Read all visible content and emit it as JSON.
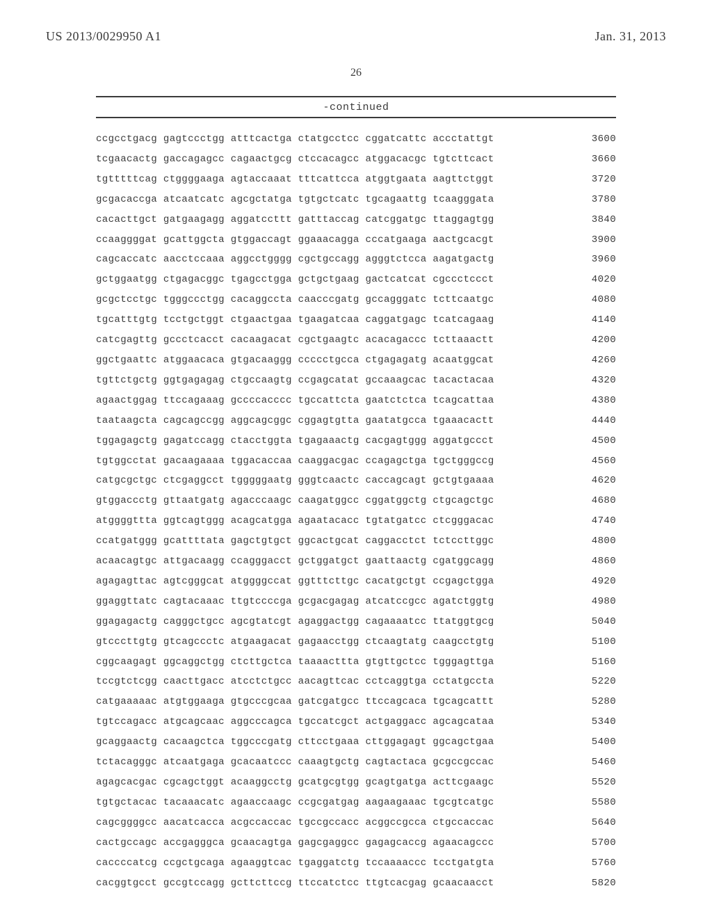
{
  "header": {
    "pub_number": "US 2013/0029950 A1",
    "pub_date": "Jan. 31, 2013"
  },
  "page_number": "26",
  "continued_label": "-continued",
  "sequence_rows": [
    {
      "groups": [
        "ccgcctgacg",
        "gagtccctgg",
        "atttcactga",
        "ctatgcctcc",
        "cggatcattc",
        "accctattgt"
      ],
      "num": "3600"
    },
    {
      "groups": [
        "tcgaacactg",
        "gaccagagcc",
        "cagaactgcg",
        "ctccacagcc",
        "atggacacgc",
        "tgtcttcact"
      ],
      "num": "3660"
    },
    {
      "groups": [
        "tgtttttcag",
        "ctggggaaga",
        "agtaccaaat",
        "tttcattcca",
        "atggtgaata",
        "aagttctggt"
      ],
      "num": "3720"
    },
    {
      "groups": [
        "gcgacaccga",
        "atcaatcatc",
        "agcgctatga",
        "tgtgctcatc",
        "tgcagaattg",
        "tcaagggata"
      ],
      "num": "3780"
    },
    {
      "groups": [
        "cacacttgct",
        "gatgaagagg",
        "aggatccttt",
        "gatttaccag",
        "catcggatgc",
        "ttaggagtgg"
      ],
      "num": "3840"
    },
    {
      "groups": [
        "ccaaggggat",
        "gcattggcta",
        "gtggaccagt",
        "ggaaacagga",
        "cccatgaaga",
        "aactgcacgt"
      ],
      "num": "3900"
    },
    {
      "groups": [
        "cagcaccatc",
        "aacctccaaa",
        "aggcctgggg",
        "cgctgccagg",
        "agggtctcca",
        "aagatgactg"
      ],
      "num": "3960"
    },
    {
      "groups": [
        "gctggaatgg",
        "ctgagacggc",
        "tgagcctgga",
        "gctgctgaag",
        "gactcatcat",
        "cgccctccct"
      ],
      "num": "4020"
    },
    {
      "groups": [
        "gcgctcctgc",
        "tgggccctgg",
        "cacaggccta",
        "caacccgatg",
        "gccagggatc",
        "tcttcaatgc"
      ],
      "num": "4080"
    },
    {
      "groups": [
        "tgcatttgtg",
        "tcctgctggt",
        "ctgaactgaa",
        "tgaagatcaa",
        "caggatgagc",
        "tcatcagaag"
      ],
      "num": "4140"
    },
    {
      "groups": [
        "catcgagttg",
        "gccctcacct",
        "cacaagacat",
        "cgctgaagtc",
        "acacagaccc",
        "tcttaaactt"
      ],
      "num": "4200"
    },
    {
      "groups": [
        "ggctgaattc",
        "atggaacaca",
        "gtgacaaggg",
        "ccccctgcca",
        "ctgagagatg",
        "acaatggcat"
      ],
      "num": "4260"
    },
    {
      "groups": [
        "tgttctgctg",
        "ggtgagagag",
        "ctgccaagtg",
        "ccgagcatat",
        "gccaaagcac",
        "tacactacaa"
      ],
      "num": "4320"
    },
    {
      "groups": [
        "agaactggag",
        "ttccagaaag",
        "gccccacccc",
        "tgccattcta",
        "gaatctctca",
        "tcagcattaa"
      ],
      "num": "4380"
    },
    {
      "groups": [
        "taataagcta",
        "cagcagccgg",
        "aggcagcggc",
        "cggagtgtta",
        "gaatatgcca",
        "tgaaacactt"
      ],
      "num": "4440"
    },
    {
      "groups": [
        "tggagagctg",
        "gagatccagg",
        "ctacctggta",
        "tgagaaactg",
        "cacgagtggg",
        "aggatgccct"
      ],
      "num": "4500"
    },
    {
      "groups": [
        "tgtggcctat",
        "gacaagaaaa",
        "tggacaccaa",
        "caaggacgac",
        "ccagagctga",
        "tgctgggccg"
      ],
      "num": "4560"
    },
    {
      "groups": [
        "catgcgctgc",
        "ctcgaggcct",
        "tgggggaatg",
        "gggtcaactc",
        "caccagcagt",
        "gctgtgaaaa"
      ],
      "num": "4620"
    },
    {
      "groups": [
        "gtggaccctg",
        "gttaatgatg",
        "agacccaagc",
        "caagatggcc",
        "cggatggctg",
        "ctgcagctgc"
      ],
      "num": "4680"
    },
    {
      "groups": [
        "atggggttta",
        "ggtcagtggg",
        "acagcatgga",
        "agaatacacc",
        "tgtatgatcc",
        "ctcgggacac"
      ],
      "num": "4740"
    },
    {
      "groups": [
        "ccatgatggg",
        "gcattttata",
        "gagctgtgct",
        "ggcactgcat",
        "caggacctct",
        "tctccttggc"
      ],
      "num": "4800"
    },
    {
      "groups": [
        "acaacagtgc",
        "attgacaagg",
        "ccagggacct",
        "gctggatgct",
        "gaattaactg",
        "cgatggcagg"
      ],
      "num": "4860"
    },
    {
      "groups": [
        "agagagttac",
        "agtcgggcat",
        "atggggccat",
        "ggtttcttgc",
        "cacatgctgt",
        "ccgagctgga"
      ],
      "num": "4920"
    },
    {
      "groups": [
        "ggaggttatc",
        "cagtacaaac",
        "ttgtccccga",
        "gcgacgagag",
        "atcatccgcc",
        "agatctggtg"
      ],
      "num": "4980"
    },
    {
      "groups": [
        "ggagagactg",
        "cagggctgcc",
        "agcgtatcgt",
        "agaggactgg",
        "cagaaaatcc",
        "ttatggtgcg"
      ],
      "num": "5040"
    },
    {
      "groups": [
        "gtcccttgtg",
        "gtcagccctc",
        "atgaagacat",
        "gagaacctgg",
        "ctcaagtatg",
        "caagcctgtg"
      ],
      "num": "5100"
    },
    {
      "groups": [
        "cggcaagagt",
        "ggcaggctgg",
        "ctcttgctca",
        "taaaacttta",
        "gtgttgctcc",
        "tgggagttga"
      ],
      "num": "5160"
    },
    {
      "groups": [
        "tccgtctcgg",
        "caacttgacc",
        "atcctctgcc",
        "aacagttcac",
        "cctcaggtga",
        "cctatgccta"
      ],
      "num": "5220"
    },
    {
      "groups": [
        "catgaaaaac",
        "atgtggaaga",
        "gtgcccgcaa",
        "gatcgatgcc",
        "ttccagcaca",
        "tgcagcattt"
      ],
      "num": "5280"
    },
    {
      "groups": [
        "tgtccagacc",
        "atgcagcaac",
        "aggcccagca",
        "tgccatcgct",
        "actgaggacc",
        "agcagcataa"
      ],
      "num": "5340"
    },
    {
      "groups": [
        "gcaggaactg",
        "cacaagctca",
        "tggcccgatg",
        "cttcctgaaa",
        "cttggagagt",
        "ggcagctgaa"
      ],
      "num": "5400"
    },
    {
      "groups": [
        "tctacagggc",
        "atcaatgaga",
        "gcacaatccc",
        "caaagtgctg",
        "cagtactaca",
        "gcgccgccac"
      ],
      "num": "5460"
    },
    {
      "groups": [
        "agagcacgac",
        "cgcagctggt",
        "acaaggcctg",
        "gcatgcgtgg",
        "gcagtgatga",
        "acttcgaagc"
      ],
      "num": "5520"
    },
    {
      "groups": [
        "tgtgctacac",
        "tacaaacatc",
        "agaaccaagc",
        "ccgcgatgag",
        "aagaagaaac",
        "tgcgtcatgc"
      ],
      "num": "5580"
    },
    {
      "groups": [
        "cagcggggcc",
        "aacatcacca",
        "acgccaccac",
        "tgccgccacc",
        "acggccgcca",
        "ctgccaccac"
      ],
      "num": "5640"
    },
    {
      "groups": [
        "cactgccagc",
        "accgagggca",
        "gcaacagtga",
        "gagcgaggcc",
        "gagagcaccg",
        "agaacagccc"
      ],
      "num": "5700"
    },
    {
      "groups": [
        "caccccatcg",
        "ccgctgcaga",
        "agaaggtcac",
        "tgaggatctg",
        "tccaaaaccc",
        "tcctgatgta"
      ],
      "num": "5760"
    },
    {
      "groups": [
        "cacggtgcct",
        "gccgtccagg",
        "gcttcttccg",
        "ttccatctcc",
        "ttgtcacgag",
        "gcaacaacct"
      ],
      "num": "5820"
    }
  ]
}
